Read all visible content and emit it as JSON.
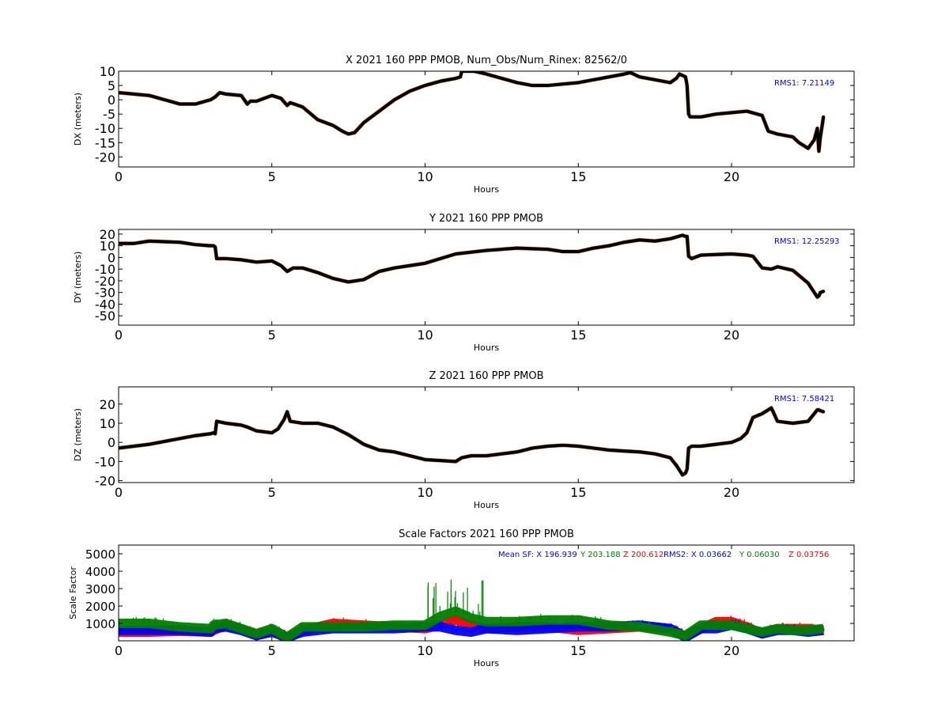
{
  "chart_data": [
    {
      "type": "scatter",
      "title": "X 2021 160 PPP  PMOB, Num_Obs/Num_Rinex: 82562/0",
      "xlabel": "Hours",
      "ylabel": "DX (meters)",
      "xlim": [
        0,
        24
      ],
      "ylim": [
        -23.5,
        10
      ],
      "xticks": [
        0,
        5,
        10,
        15,
        20
      ],
      "yticks": [
        10,
        5,
        0,
        -5,
        -10,
        -15,
        -20
      ],
      "annotation": "RMS1:  7.21149",
      "annotation_color": "#0000ff",
      "series": [
        {
          "color": "#000000",
          "x": [
            0,
            0.5,
            1.0,
            1.5,
            2.0,
            2.5,
            3.0,
            3.15,
            3.3,
            3.5,
            4.0,
            4.2,
            4.3,
            4.5,
            5.0,
            5.3,
            5.5,
            5.6,
            6.0,
            6.5,
            7.0,
            7.3,
            7.5,
            7.7,
            8.0,
            8.5,
            9.0,
            9.5,
            10.0,
            10.5,
            11.0,
            11.15,
            11.2,
            11.3,
            11.6,
            12.0,
            12.5,
            13.0,
            13.5,
            14.0,
            14.5,
            15.0,
            15.5,
            16.0,
            16.5,
            16.7,
            17.0,
            17.5,
            18.0,
            18.2,
            18.3,
            18.5,
            18.55,
            18.6,
            18.65,
            18.8,
            19.0,
            19.5,
            20.0,
            20.5,
            21.0,
            21.2,
            21.5,
            22.0,
            22.2,
            22.5,
            22.7,
            22.8,
            22.85,
            22.9,
            23.0
          ],
          "y": [
            2.5,
            2,
            1.5,
            0,
            -1.5,
            -1.5,
            0,
            1,
            2.5,
            2,
            1.5,
            -1.5,
            -0.5,
            -0.5,
            1.5,
            0.5,
            -2,
            -1,
            -2.5,
            -7,
            -9,
            -11,
            -12,
            -11.5,
            -8,
            -4,
            0,
            3,
            5,
            6.5,
            7.5,
            8,
            10,
            10,
            10,
            9,
            7.5,
            6,
            5,
            5,
            5.5,
            6,
            7,
            8,
            9,
            9.5,
            8,
            7,
            6,
            7.5,
            9,
            8,
            5,
            -5,
            -6,
            -6,
            -6,
            -5,
            -4.5,
            -4,
            -5.5,
            -11,
            -12,
            -13,
            -15,
            -17,
            -14,
            -10,
            -18,
            -13,
            -6
          ]
        }
      ]
    },
    {
      "type": "scatter",
      "title": "Y 2021 160 PPP  PMOB",
      "xlabel": "Hours",
      "ylabel": "DY (meters)",
      "xlim": [
        0,
        24
      ],
      "ylim": [
        -58,
        24
      ],
      "xticks": [
        0,
        5,
        10,
        15,
        20
      ],
      "yticks": [
        20,
        10,
        0,
        -10,
        -20,
        -30,
        -40,
        -50
      ],
      "annotation": "RMS1: 12.25293",
      "annotation_color": "#0000ff",
      "series": [
        {
          "color": "#000000",
          "x": [
            0,
            0.5,
            1.0,
            2.0,
            2.5,
            3.0,
            3.1,
            3.15,
            3.2,
            3.5,
            4.0,
            4.5,
            5.0,
            5.3,
            5.5,
            5.7,
            6.0,
            6.5,
            7.0,
            7.5,
            8.0,
            8.5,
            9.0,
            9.5,
            10.0,
            10.5,
            11.0,
            12.0,
            13.0,
            14.0,
            14.5,
            15.0,
            15.5,
            16.0,
            16.5,
            17.0,
            17.5,
            18.0,
            18.4,
            18.5,
            18.55,
            18.6,
            18.7,
            19.0,
            20.0,
            20.5,
            20.7,
            21.0,
            21.3,
            21.5,
            22.0,
            22.5,
            22.7,
            22.8,
            22.85,
            22.9,
            23.0
          ],
          "y": [
            12,
            12,
            14,
            13,
            11,
            10,
            10,
            9,
            -1,
            -1,
            -2,
            -4,
            -3,
            -7,
            -12,
            -9,
            -9,
            -13,
            -18,
            -21,
            -19,
            -12,
            -9,
            -7,
            -5,
            -1,
            3,
            6,
            8,
            7,
            5,
            5,
            8,
            10,
            13,
            15,
            14,
            16,
            19,
            18,
            18,
            1,
            -1,
            2,
            3,
            2,
            1,
            -9,
            -10,
            -8,
            -11,
            -22,
            -30,
            -34,
            -33,
            -30,
            -29
          ]
        }
      ]
    },
    {
      "type": "scatter",
      "title": "Z 2021 160 PPP  PMOB",
      "xlabel": "Hours",
      "ylabel": "DZ (meters)",
      "xlim": [
        0,
        24
      ],
      "ylim": [
        -21,
        29
      ],
      "xticks": [
        0,
        5,
        10,
        15,
        20
      ],
      "yticks": [
        20,
        10,
        0,
        -10,
        -20
      ],
      "annotation": "RMS1:  7.58421",
      "annotation_color": "#0000ff",
      "series": [
        {
          "color": "#000000",
          "x": [
            0,
            0.5,
            1.0,
            2.0,
            2.5,
            3.0,
            3.1,
            3.15,
            3.2,
            3.5,
            4.0,
            4.2,
            4.5,
            5.0,
            5.2,
            5.4,
            5.5,
            5.6,
            6.0,
            6.5,
            7.0,
            7.5,
            8.0,
            8.5,
            9.0,
            9.5,
            10.0,
            10.5,
            11.0,
            11.1,
            11.2,
            11.5,
            12.0,
            12.5,
            13.0,
            13.5,
            14.0,
            14.5,
            15.0,
            15.5,
            16.0,
            16.5,
            17.0,
            17.5,
            18.0,
            18.2,
            18.4,
            18.5,
            18.55,
            18.6,
            18.7,
            19.0,
            19.5,
            20.0,
            20.3,
            20.5,
            20.7,
            21.0,
            21.3,
            21.5,
            22.0,
            22.5,
            22.7,
            22.8,
            22.85,
            22.9,
            23.0
          ],
          "y": [
            -3,
            -2,
            -1,
            2,
            3.5,
            4.5,
            5,
            4.5,
            11,
            10,
            9,
            8,
            6,
            5,
            7,
            12,
            16,
            11,
            10,
            10,
            8,
            4,
            -1,
            -4,
            -5,
            -7,
            -9,
            -9.5,
            -10,
            -9,
            -8,
            -7,
            -7,
            -6,
            -5,
            -3,
            -2,
            -1.5,
            -2,
            -3,
            -4,
            -4.5,
            -5,
            -6,
            -8,
            -12,
            -17,
            -16,
            -14,
            -3,
            -2,
            -2,
            -1,
            0,
            2,
            5,
            13,
            15,
            18,
            11,
            10,
            11,
            15,
            17,
            17,
            16.5,
            16
          ]
        }
      ]
    },
    {
      "type": "scatter",
      "title": "Scale Factors 2021 160 PPP  PMOB",
      "xlabel": "Hours",
      "ylabel": "Scale Factor",
      "xlim": [
        0,
        24
      ],
      "ylim": [
        0,
        5500
      ],
      "xticks": [
        0,
        5,
        10,
        15,
        20
      ],
      "yticks": [
        5000,
        4000,
        3000,
        2000,
        1000
      ],
      "annotation_sf": {
        "prefix": "Mean SF: ",
        "x": "X 196.939",
        "y": "Y 203.188",
        "z": "Z 200.612"
      },
      "annotation_rms2": {
        "x": "RMS2: X  0.03662",
        "y": "Y  0.06030",
        "z": "Z  0.03756"
      },
      "series": [
        {
          "name": "Z",
          "color": "#ff0000",
          "x": [
            0,
            1,
            2,
            3,
            3.1,
            3.5,
            4,
            4.5,
            5,
            5.5,
            6,
            7,
            8,
            9,
            10,
            10.5,
            11,
            11.5,
            12,
            13,
            14,
            15,
            16,
            17,
            18,
            18.5,
            19,
            19.5,
            20,
            20.5,
            21,
            21.5,
            22,
            22.5,
            23
          ],
          "y": [
            500,
            500,
            550,
            500,
            600,
            900,
            700,
            300,
            600,
            100,
            600,
            1000,
            900,
            800,
            700,
            900,
            1200,
            900,
            700,
            800,
            800,
            600,
            700,
            800,
            700,
            250,
            700,
            1100,
            1100,
            800,
            400,
            700,
            700,
            700,
            600
          ]
        },
        {
          "name": "X",
          "color": "#0000ff",
          "x": [
            0,
            1,
            2,
            3,
            3.1,
            3.5,
            4,
            4.5,
            5,
            5.5,
            6,
            7,
            8,
            9,
            10,
            10.5,
            11,
            11.5,
            12,
            13,
            14,
            15,
            16,
            17,
            18,
            18.5,
            19,
            19.5,
            20,
            20.5,
            21,
            21.5,
            22,
            22.5,
            23
          ],
          "y": [
            600,
            600,
            600,
            500,
            700,
            800,
            600,
            300,
            500,
            200,
            500,
            700,
            700,
            700,
            800,
            800,
            600,
            500,
            700,
            600,
            700,
            800,
            800,
            900,
            700,
            200,
            700,
            700,
            900,
            700,
            400,
            600,
            600,
            500,
            600
          ]
        },
        {
          "name": "Y",
          "color": "#008000",
          "x": [
            0,
            1,
            2,
            3,
            3.1,
            3.5,
            4,
            4.5,
            5,
            5.5,
            6,
            7,
            8,
            9,
            10,
            10.5,
            11,
            11.5,
            12,
            13,
            14,
            15,
            16,
            17,
            18,
            18.5,
            19,
            19.5,
            20,
            20.5,
            21,
            21.5,
            22,
            22.5,
            23
          ],
          "y": [
            1000,
            1000,
            800,
            700,
            900,
            1000,
            700,
            400,
            700,
            200,
            800,
            800,
            800,
            900,
            900,
            1400,
            1700,
            1300,
            1100,
            1100,
            1200,
            1200,
            900,
            800,
            500,
            300,
            900,
            900,
            900,
            700,
            500,
            700,
            600,
            600,
            700
          ]
        }
      ]
    }
  ]
}
